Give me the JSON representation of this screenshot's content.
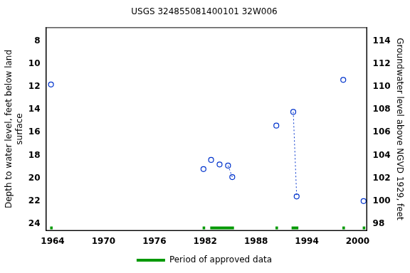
{
  "chart_data": {
    "type": "scatter",
    "title": "USGS 324855081400101 32W006",
    "ylabel": [
      "Depth to water level, feet below land",
      "surface"
    ],
    "y2label": "Groundwater level above NGVD 1929, feet",
    "x": [
      1963.8,
      null,
      1981.8,
      null,
      1982.7,
      null,
      1983.7,
      null,
      1984.7,
      1985.2,
      null,
      1990.4,
      null,
      1992.4,
      1992.8,
      null,
      1998.3,
      null,
      2000.7
    ],
    "series": [
      {
        "name": "Depth to water level",
        "color": "#0033cc",
        "marker": "open_circle",
        "line_style": "dotted",
        "values": [
          11.8,
          null,
          19.2,
          null,
          18.4,
          null,
          18.8,
          null,
          18.9,
          19.9,
          null,
          15.4,
          null,
          14.2,
          21.6,
          null,
          11.4,
          null,
          22.0
        ]
      }
    ],
    "approved_periods": {
      "name": "Period of approved data",
      "color": "#009900",
      "ranges": [
        [
          1963.7,
          1964.0
        ],
        [
          1981.7,
          1982.0
        ],
        [
          1982.6,
          1985.4
        ],
        [
          1990.3,
          1990.6
        ],
        [
          1992.2,
          1993.0
        ],
        [
          1998.2,
          1998.5
        ],
        [
          2000.6,
          2000.9
        ]
      ]
    },
    "xlim": [
      1963.2,
      2001.1
    ],
    "xticks": [
      1964,
      1970,
      1976,
      1982,
      1988,
      1994,
      2000
    ],
    "ylim": [
      6.8,
      24.6
    ],
    "yticks": [
      8,
      10,
      12,
      14,
      16,
      18,
      20,
      22,
      24
    ],
    "y2lim": [
      97.4,
      115.2
    ],
    "y2ticks": [
      98,
      100,
      102,
      104,
      106,
      108,
      110,
      112,
      114
    ],
    "grid": false,
    "legend": "bottom"
  }
}
